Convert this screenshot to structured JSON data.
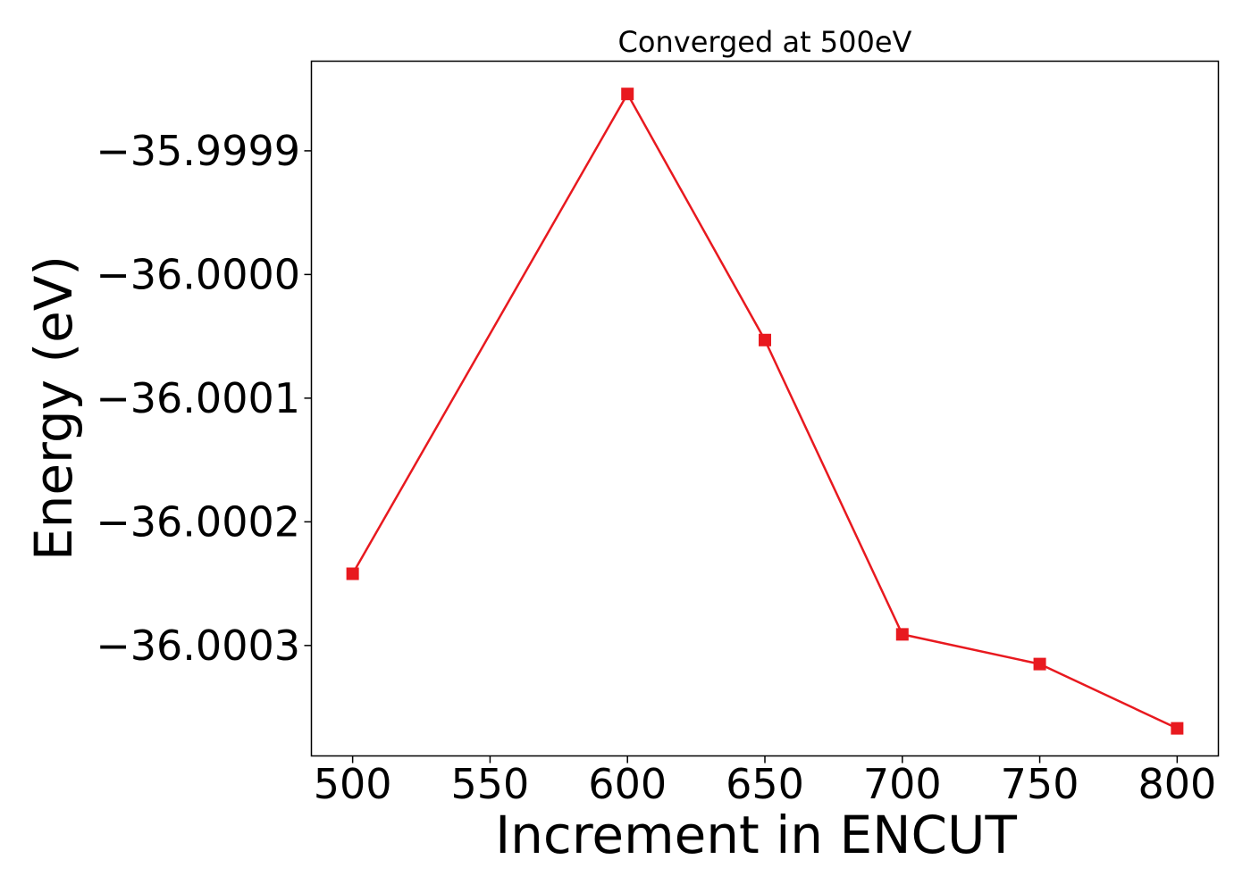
{
  "chart_data": {
    "type": "line",
    "title": "Converged at 500eV",
    "xlabel": "Increment in ENCUT",
    "ylabel": "Energy (eV)",
    "x": [
      500,
      600,
      650,
      700,
      750,
      800
    ],
    "series": [
      {
        "values": [
          -36.000242,
          -35.999854,
          -36.000053,
          -36.000291,
          -36.000315,
          -36.000367
        ],
        "color": "#e8191f",
        "marker": "square"
      }
    ],
    "xticks": [
      500,
      550,
      600,
      650,
      700,
      750,
      800
    ],
    "xtick_labels": [
      "500",
      "550",
      "600",
      "650",
      "700",
      "750",
      "800"
    ],
    "yticks": [
      -35.9999,
      -36.0,
      -36.0001,
      -36.0002,
      -36.0003
    ],
    "ytick_labels": [
      "−35.9999",
      "−36.0000",
      "−36.0001",
      "−36.0002",
      "−36.0003"
    ],
    "xlim": [
      485,
      815
    ],
    "ylim": [
      -36.0003893,
      -35.9998275
    ],
    "grid": false,
    "legend": false
  }
}
